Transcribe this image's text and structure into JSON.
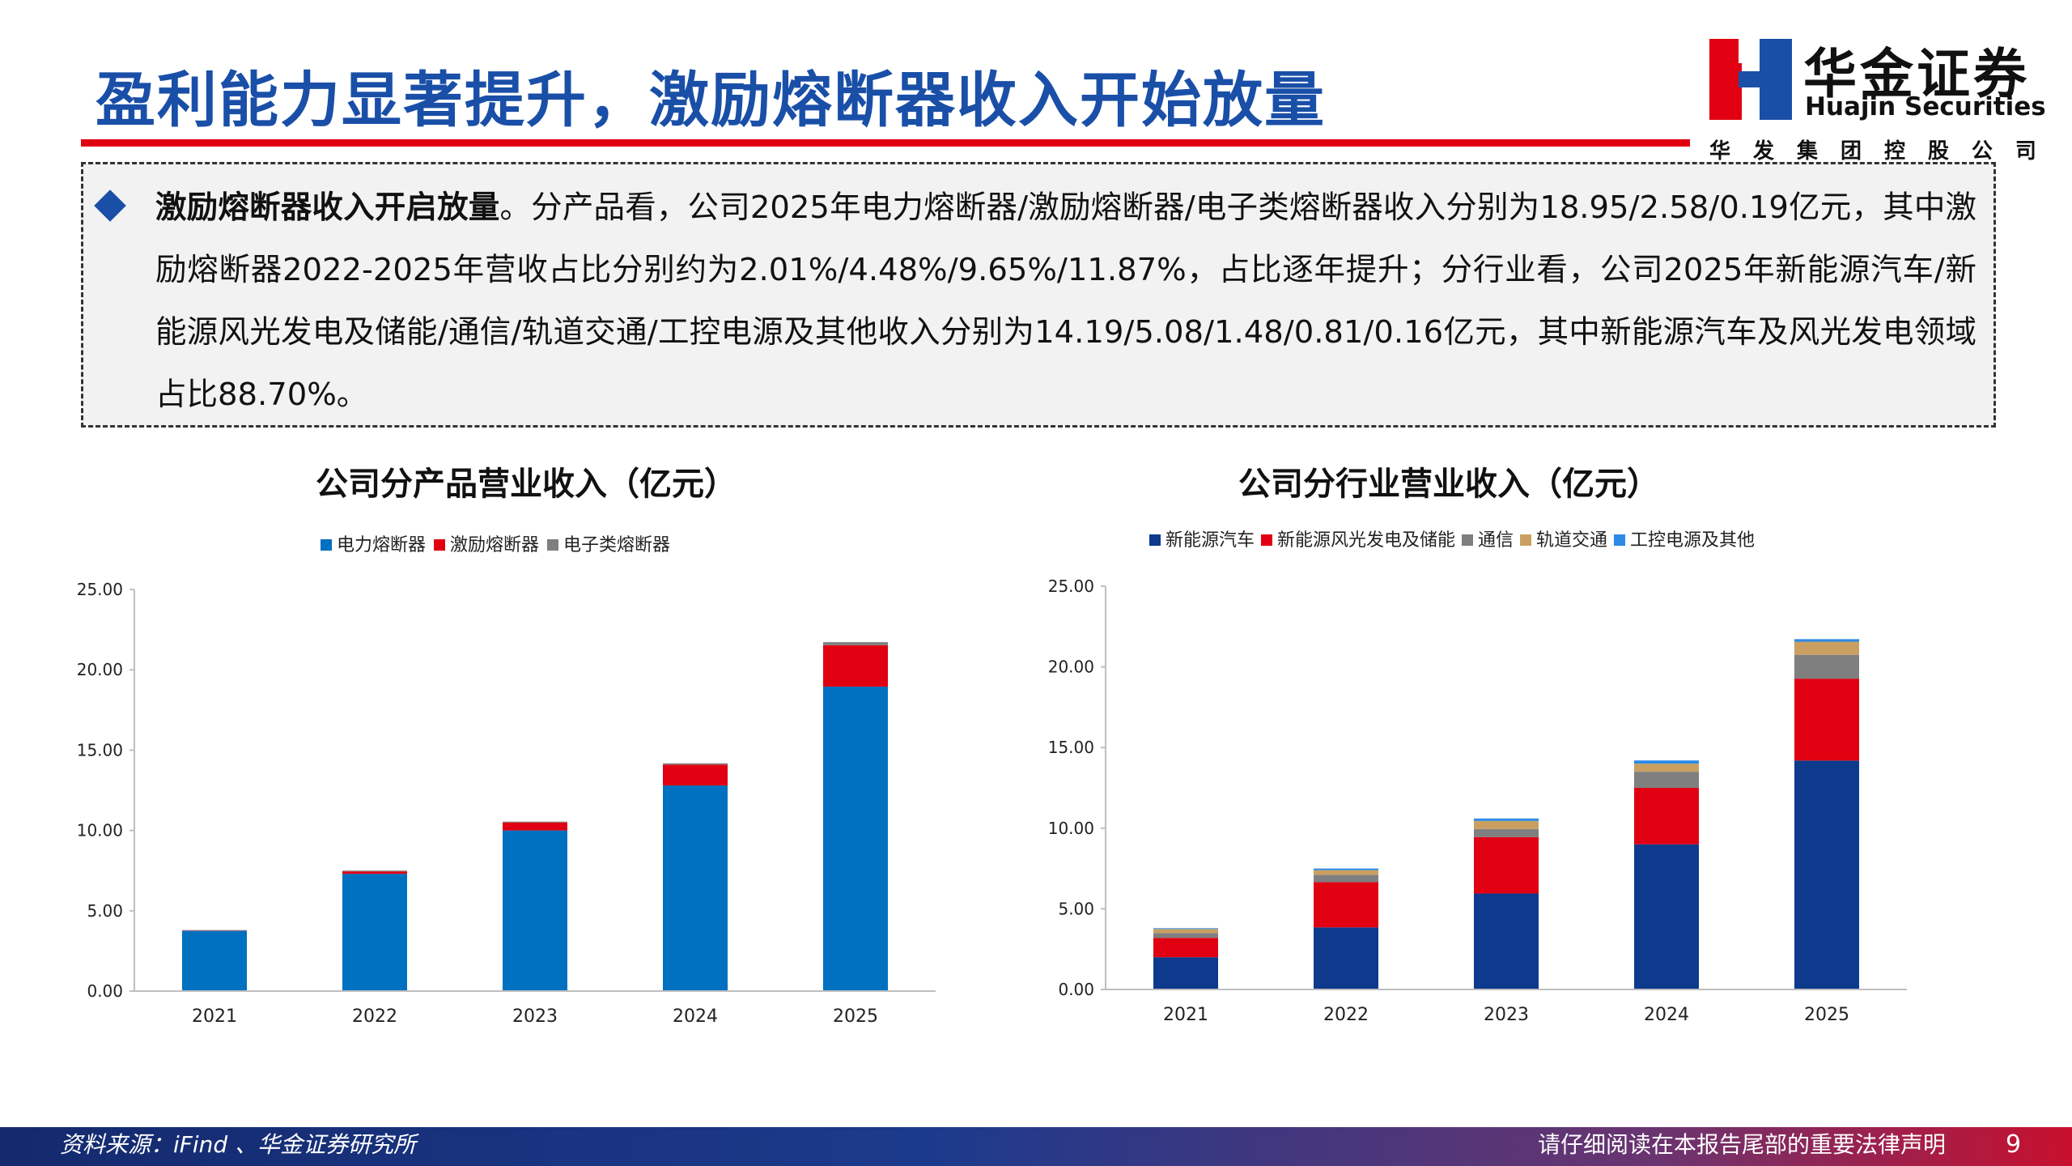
{
  "page": {
    "title": "盈利能力显著提升，激励熔断器收入开始放量",
    "page_number": "9"
  },
  "logo": {
    "name_cn": "华金证券",
    "name_en": "Huajin Securities",
    "group_chars": [
      "华",
      "发",
      "集",
      "团",
      "控",
      "股",
      "公",
      "司"
    ],
    "colors": {
      "red": "#e00012",
      "blue": "#1a4fa8"
    }
  },
  "callout": {
    "lead": "激励熔断器收入开启放量",
    "body": "。分产品看，公司2025年电力熔断器/激励熔断器/电子类熔断器收入分别为18.95/2.58/0.19亿元，其中激励熔断器2022-2025年营收占比分别约为2.01%/4.48%/9.65%/11.87%，占比逐年提升；分行业看，公司2025年新能源汽车/新能源风光发电及储能/通信/轨道交通/工控电源及其他收入分别为14.19/5.08/1.48/0.81/0.16亿元，其中新能源汽车及风光发电领域占比88.70%。"
  },
  "footer": {
    "source": "资料来源：iFind 、华金证券研究所",
    "disclaimer": "请仔细阅读在本报告尾部的重要法律声明"
  },
  "chart_data": [
    {
      "type": "bar",
      "stacked": true,
      "title": "公司分产品营业收入（亿元）",
      "categories": [
        "2021",
        "2022",
        "2023",
        "2024",
        "2025"
      ],
      "ylim": [
        0,
        25
      ],
      "yticks": [
        "0.00",
        "5.00",
        "10.00",
        "15.00",
        "20.00",
        "25.00"
      ],
      "legend_position": "top",
      "grid": false,
      "series": [
        {
          "name": "电力熔断器",
          "color": "#0070c0",
          "values": [
            3.75,
            7.3,
            10.0,
            12.8,
            18.95
          ]
        },
        {
          "name": "激励熔断器",
          "color": "#e00012",
          "values": [
            0.02,
            0.15,
            0.5,
            1.3,
            2.58
          ]
        },
        {
          "name": "电子类熔断器",
          "color": "#7f7f7f",
          "values": [
            0.03,
            0.05,
            0.05,
            0.08,
            0.19
          ]
        }
      ]
    },
    {
      "type": "bar",
      "stacked": true,
      "title": "公司分行业营业收入（亿元）",
      "categories": [
        "2021",
        "2022",
        "2023",
        "2024",
        "2025"
      ],
      "ylim": [
        0,
        25
      ],
      "yticks": [
        "0.00",
        "5.00",
        "10.00",
        "15.00",
        "20.00",
        "25.00"
      ],
      "legend_position": "top",
      "grid": false,
      "series": [
        {
          "name": "新能源汽车",
          "color": "#0d3a8c",
          "values": [
            2.0,
            3.85,
            5.95,
            9.0,
            14.19
          ]
        },
        {
          "name": "新能源风光发电及储能",
          "color": "#e00012",
          "values": [
            1.2,
            2.8,
            3.5,
            3.5,
            5.08
          ]
        },
        {
          "name": "通信",
          "color": "#7f7f7f",
          "values": [
            0.3,
            0.45,
            0.5,
            1.0,
            1.48
          ]
        },
        {
          "name": "轨道交通",
          "color": "#c9a062",
          "values": [
            0.25,
            0.3,
            0.5,
            0.5,
            0.81
          ]
        },
        {
          "name": "工控电源及其他",
          "color": "#2d8ae6",
          "values": [
            0.05,
            0.1,
            0.15,
            0.2,
            0.16
          ]
        }
      ]
    }
  ]
}
